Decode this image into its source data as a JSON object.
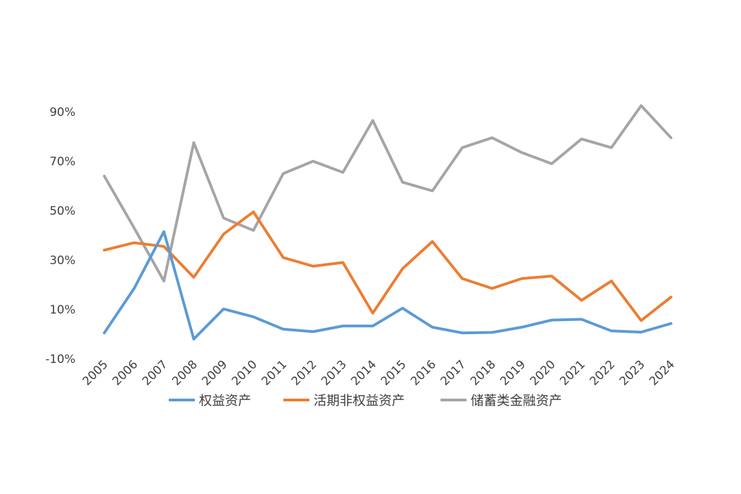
{
  "chart_data": {
    "type": "line",
    "title": "",
    "xlabel": "",
    "ylabel": "",
    "x": [
      "2005",
      "2006",
      "2007",
      "2008",
      "2009",
      "2010",
      "2011",
      "2012",
      "2013",
      "2014",
      "2015",
      "2016",
      "2017",
      "2018",
      "2019",
      "2020",
      "2021",
      "2022",
      "2023",
      "2024"
    ],
    "y_ticks": [
      "90%",
      "70%",
      "50%",
      "30%",
      "10%",
      "-10%"
    ],
    "ylim": [
      -10,
      100
    ],
    "grid": false,
    "legend_position": "bottom",
    "series": [
      {
        "name": "权益资产",
        "color": "#5B9BD5",
        "values": [
          0.5,
          18.5,
          41.5,
          -2.0,
          10.2,
          7.0,
          2.0,
          1.0,
          3.3,
          3.3,
          10.5,
          2.8,
          0.5,
          0.7,
          2.8,
          5.7,
          6.0,
          1.3,
          0.8,
          4.3
        ]
      },
      {
        "name": "活期非权益资产",
        "color": "#ED7D31",
        "values": [
          34.0,
          37.0,
          35.5,
          23.0,
          40.5,
          49.5,
          31.0,
          27.5,
          29.0,
          8.5,
          26.5,
          37.5,
          22.5,
          18.5,
          22.5,
          23.5,
          13.7,
          21.5,
          5.5,
          15.0
        ]
      },
      {
        "name": "储蓄类金融资产",
        "color": "#A5A5A5",
        "values": [
          64.0,
          43.0,
          21.5,
          77.5,
          47.0,
          42.0,
          65.0,
          70.0,
          65.5,
          86.5,
          61.5,
          58.0,
          75.5,
          79.5,
          73.5,
          69.0,
          79.0,
          75.5,
          92.5,
          79.5
        ]
      }
    ]
  }
}
